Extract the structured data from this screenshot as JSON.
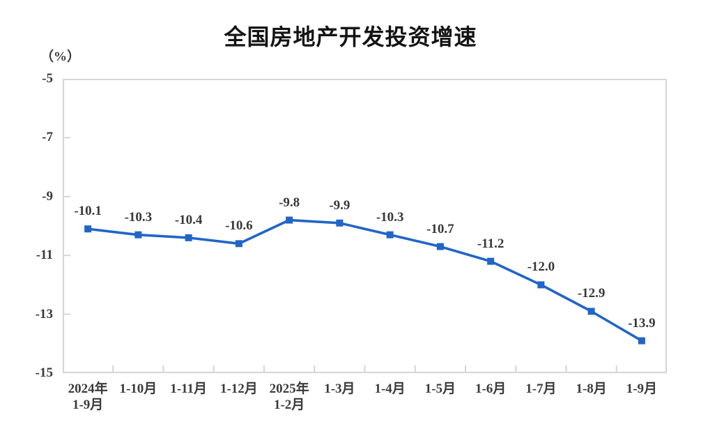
{
  "chart_data": {
    "type": "line",
    "title": "全国房地产开发投资增速",
    "unit_label": "（%）",
    "categories": [
      "2024年\n1-9月",
      "1-10月",
      "1-11月",
      "1-12月",
      "2025年\n1-2月",
      "1-3月",
      "1-4月",
      "1-5月",
      "1-6月",
      "1-7月",
      "1-8月",
      "1-9月"
    ],
    "values": [
      -10.1,
      -10.3,
      -10.4,
      -10.6,
      -9.8,
      -9.9,
      -10.3,
      -10.7,
      -11.2,
      -12.0,
      -12.9,
      -13.9
    ],
    "data_labels": [
      "-10.1",
      "-10.3",
      "-10.4",
      "-10.6",
      "-9.8",
      "-9.9",
      "-10.3",
      "-10.7",
      "-11.2",
      "-12.0",
      "-12.9",
      "-13.9"
    ],
    "y_tick_labels": [
      "-5",
      "-7",
      "-9",
      "-11",
      "-13",
      "-15"
    ],
    "y_ticks": [
      -5,
      -7,
      -9,
      -11,
      -13,
      -15
    ],
    "ylim": [
      -15,
      -5
    ],
    "grid": false,
    "legend": null,
    "marker": "square",
    "colors": {
      "series": "#2165C7",
      "axis": "#d5d5d5",
      "label_text": "#3a3a3a",
      "title_text": "#141414"
    }
  }
}
